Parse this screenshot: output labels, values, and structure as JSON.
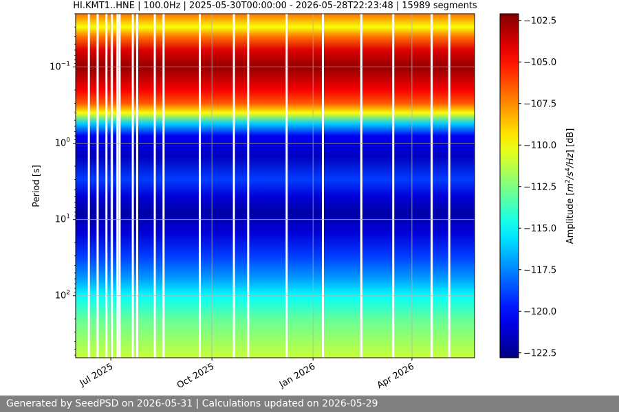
{
  "chart_data": {
    "type": "heatmap",
    "title": "HI.KMT1..HNE | 100.0Hz | 2025-05-30T00:00:00 - 2026-05-28T22:23:48 | 15989 segments",
    "ylabel": "Period [s]",
    "yscale": "log",
    "yaxis_inverted": true,
    "ylim": [
      0.02,
      650
    ],
    "y_ticks": [
      {
        "value": 0.1,
        "label_base": "10",
        "label_exp": "−1"
      },
      {
        "value": 1,
        "label_base": "10",
        "label_exp": "0"
      },
      {
        "value": 10,
        "label_base": "10",
        "label_exp": "1"
      },
      {
        "value": 100,
        "label_base": "10",
        "label_exp": "2"
      }
    ],
    "xlim": [
      "2025-05-30",
      "2026-05-28"
    ],
    "x_ticks": [
      {
        "value": "2025-07-01",
        "label": "Jul 2025"
      },
      {
        "value": "2025-10-01",
        "label": "Oct 2025"
      },
      {
        "value": "2026-01-01",
        "label": "Jan 2026"
      },
      {
        "value": "2026-04-01",
        "label": "Apr 2026"
      }
    ],
    "grid": true,
    "colormap": "jet",
    "colorbar": {
      "label": "Amplitude [m2/s4/Hz] [dB]",
      "label_parts": {
        "prefix": "Amplitude [",
        "m": "m",
        "sq": "2",
        "slash": "/",
        "s": "s",
        "four": "4",
        "hz": "/Hz",
        "suffix": "] [dB]"
      },
      "range": [
        -122.8,
        -102.1
      ],
      "ticks": [
        -102.5,
        -105.0,
        -107.5,
        -110.0,
        -112.5,
        -115.0,
        -117.5,
        -120.0,
        -122.5
      ],
      "tick_labels": [
        "−102.5",
        "−105.0",
        "−107.5",
        "−110.0",
        "−112.5",
        "−115.0",
        "−117.5",
        "−120.0",
        "−122.5"
      ]
    },
    "amplitude_profile": [
      {
        "period": 0.02,
        "db": -107
      },
      {
        "period": 0.03,
        "db": -110
      },
      {
        "period": 0.04,
        "db": -107
      },
      {
        "period": 0.06,
        "db": -104
      },
      {
        "period": 0.1,
        "db": -102.5
      },
      {
        "period": 0.2,
        "db": -104.5
      },
      {
        "period": 0.3,
        "db": -106.5
      },
      {
        "period": 0.4,
        "db": -110
      },
      {
        "period": 0.55,
        "db": -116
      },
      {
        "period": 0.8,
        "db": -120.5
      },
      {
        "period": 1.5,
        "db": -121.5
      },
      {
        "period": 3,
        "db": -119
      },
      {
        "period": 5,
        "db": -121
      },
      {
        "period": 8,
        "db": -122
      },
      {
        "period": 15,
        "db": -121
      },
      {
        "period": 30,
        "db": -119
      },
      {
        "period": 60,
        "db": -117
      },
      {
        "period": 100,
        "db": -115
      },
      {
        "period": 200,
        "db": -113
      },
      {
        "period": 650,
        "db": -111
      }
    ],
    "data_gaps": [
      "2025-06-11",
      "2025-06-19",
      "2025-06-27",
      "2025-07-02",
      "2025-07-07",
      "2025-07-09",
      "2025-07-21",
      "2025-07-25",
      "2025-08-10",
      "2025-08-18",
      "2025-09-20",
      "2025-10-21",
      "2025-11-03",
      "2025-12-08",
      "2026-01-10",
      "2026-02-14",
      "2026-03-15",
      "2026-04-19",
      "2026-05-05"
    ]
  },
  "footer": {
    "text": "Generated by SeedPSD on 2026-05-31 | Calculations updated on 2026-05-29"
  }
}
